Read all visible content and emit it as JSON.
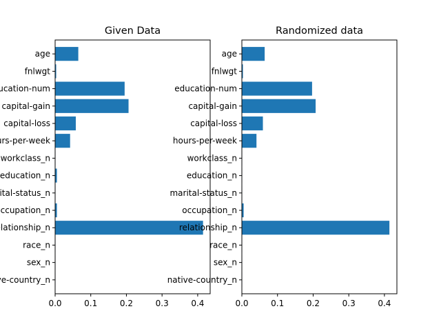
{
  "chart_data": [
    {
      "type": "bar",
      "orientation": "horizontal",
      "title": "Given Data",
      "categories": [
        "age",
        "fnlwgt",
        "education-num",
        "capital-gain",
        "capital-loss",
        "hours-per-week",
        "workclass_n",
        "education_n",
        "marital-status_n",
        "occupation_n",
        "relationship_n",
        "race_n",
        "sex_n",
        "native-country_n"
      ],
      "values": [
        0.065,
        0.003,
        0.195,
        0.206,
        0.058,
        0.042,
        0.001,
        0.005,
        0.001,
        0.005,
        0.415,
        0.001,
        0.001,
        0.001
      ],
      "xlim": [
        0,
        0.435
      ],
      "xticks": [
        "0.0",
        "0.1",
        "0.2",
        "0.3",
        "0.4"
      ],
      "color": "#1f77b4",
      "grid": false
    },
    {
      "type": "bar",
      "orientation": "horizontal",
      "title": "Randomized data",
      "categories": [
        "age",
        "fnlwgt",
        "education-num",
        "capital-gain",
        "capital-loss",
        "hours-per-week",
        "workclass_n",
        "education_n",
        "marital-status_n",
        "occupation_n",
        "relationship_n",
        "race_n",
        "sex_n",
        "native-country_n"
      ],
      "values": [
        0.064,
        0.003,
        0.197,
        0.207,
        0.059,
        0.041,
        0.001,
        0.001,
        0.001,
        0.005,
        0.414,
        0.001,
        0.001,
        0.001
      ],
      "xlim": [
        0,
        0.435
      ],
      "xticks": [
        "0.0",
        "0.1",
        "0.2",
        "0.3",
        "0.4"
      ],
      "color": "#1f77b4",
      "grid": false
    }
  ]
}
